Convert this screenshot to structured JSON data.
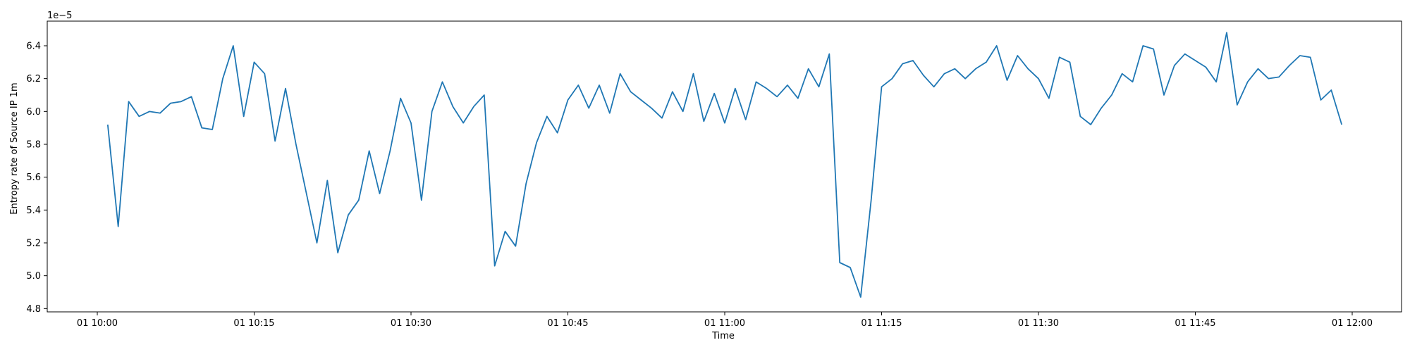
{
  "chart_data": {
    "type": "line",
    "xlabel": "Time",
    "ylabel": "Entropy rate of Source IP 1m",
    "y_offset_label": "1e−5",
    "ylim": [
      4.78,
      6.55
    ],
    "x_range_minutes": [
      -5,
      125
    ],
    "grid": false,
    "line_color": "#1f77b4",
    "y_ticks": [
      {
        "value": 4.8,
        "label": "4.8"
      },
      {
        "value": 5.0,
        "label": "5.0"
      },
      {
        "value": 5.2,
        "label": "5.2"
      },
      {
        "value": 5.4,
        "label": "5.4"
      },
      {
        "value": 5.6,
        "label": "5.6"
      },
      {
        "value": 5.8,
        "label": "5.8"
      },
      {
        "value": 6.0,
        "label": "6.0"
      },
      {
        "value": 6.2,
        "label": "6.2"
      },
      {
        "value": 6.4,
        "label": "6.4"
      }
    ],
    "x_ticks": [
      {
        "minute": 0,
        "label": "01 10:00"
      },
      {
        "minute": 15,
        "label": "01 10:15"
      },
      {
        "minute": 30,
        "label": "01 10:30"
      },
      {
        "minute": 45,
        "label": "01 10:45"
      },
      {
        "minute": 60,
        "label": "01 11:00"
      },
      {
        "minute": 75,
        "label": "01 11:15"
      },
      {
        "minute": 90,
        "label": "01 11:30"
      },
      {
        "minute": 105,
        "label": "01 11:45"
      },
      {
        "minute": 120,
        "label": "01 12:00"
      }
    ],
    "series": [
      {
        "x_start_minute": 1,
        "x_step_minutes": 1,
        "values": [
          5.92,
          5.3,
          6.06,
          5.97,
          6.0,
          5.99,
          6.05,
          6.06,
          6.09,
          5.9,
          5.89,
          6.2,
          6.4,
          5.97,
          6.3,
          6.23,
          5.82,
          6.14,
          5.8,
          5.5,
          5.2,
          5.58,
          5.14,
          5.37,
          5.46,
          5.76,
          5.5,
          5.76,
          6.08,
          5.93,
          5.46,
          6.0,
          6.18,
          6.03,
          5.93,
          6.03,
          6.1,
          5.06,
          5.27,
          5.18,
          5.56,
          5.81,
          5.97,
          5.87,
          6.07,
          6.16,
          6.02,
          6.16,
          5.99,
          6.23,
          6.12,
          6.07,
          6.02,
          5.96,
          6.12,
          6.0,
          6.23,
          5.94,
          6.11,
          5.93,
          6.14,
          5.95,
          6.18,
          6.14,
          6.09,
          6.16,
          6.08,
          6.26,
          6.15,
          6.35,
          5.08,
          5.05,
          4.87,
          5.46,
          6.15,
          6.2,
          6.29,
          6.31,
          6.22,
          6.15,
          6.23,
          6.26,
          6.2,
          6.26,
          6.3,
          6.4,
          6.19,
          6.34,
          6.26,
          6.2,
          6.08,
          6.33,
          6.3,
          5.97,
          5.92,
          6.02,
          6.1,
          6.23,
          6.18,
          6.4,
          6.38,
          6.1,
          6.28,
          6.35,
          6.31,
          6.27,
          6.18,
          6.48,
          6.04,
          6.18,
          6.26,
          6.2,
          6.21,
          6.28,
          6.34,
          6.33,
          6.07,
          6.13,
          5.92
        ]
      }
    ]
  }
}
